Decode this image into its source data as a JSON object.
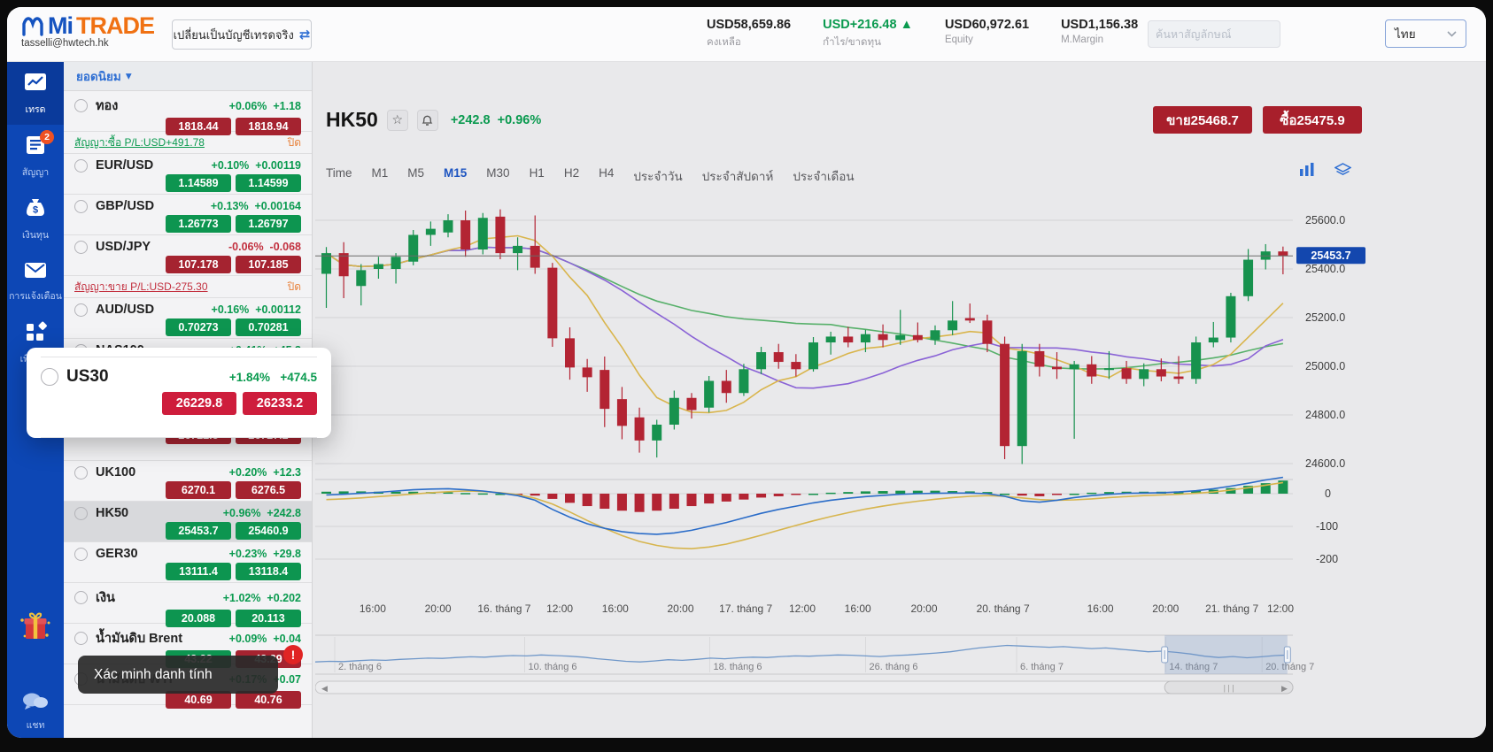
{
  "topbar": {
    "logo_mi": "Mi",
    "logo_trade": "TRADE",
    "email": "tasselli@hwtech.hk",
    "switch_button": "เปลี่ยนเป็นบัญชีเทรดจริง",
    "stats": [
      {
        "value": "USD58,659.86",
        "label": "คงเหลือ",
        "tone": "normal",
        "arrow": ""
      },
      {
        "value": "USD+216.48",
        "label": "กำไร/ขาดทุน",
        "tone": "up",
        "arrow": "▲"
      },
      {
        "value": "USD60,972.61",
        "label": "Equity",
        "tone": "normal",
        "arrow": ""
      },
      {
        "value": "USD1,156.38",
        "label": "M.Margin",
        "tone": "normal",
        "arrow": ""
      }
    ],
    "search_placeholder": "ค้นหาสัญลักษณ์",
    "language": "ไทย"
  },
  "sidebar": {
    "items": [
      {
        "label": "เทรด",
        "icon": "trend-chart",
        "active": true,
        "badge": ""
      },
      {
        "label": "สัญญา",
        "icon": "contract",
        "active": false,
        "badge": "2"
      },
      {
        "label": "เงินทุน",
        "icon": "funds",
        "active": false,
        "badge": ""
      },
      {
        "label": "การแจ้งเตือน",
        "icon": "mail",
        "active": false,
        "badge": ""
      },
      {
        "label": "เพิ่มเติม",
        "icon": "more-grid",
        "active": false,
        "badge": ""
      }
    ],
    "chat_label": "แชท"
  },
  "watchlist": {
    "header": "ยอดนิยม",
    "rows": [
      {
        "type": "instrument",
        "name": "ทอง",
        "pct": "+0.06%",
        "chg": "+1.18",
        "dir": "up",
        "sell": "1818.44",
        "buy": "1818.94",
        "sell_color": "red",
        "buy_color": "red",
        "selected": false
      },
      {
        "type": "position",
        "text": "สัญญา:ซื้อ P/L:USD+491.78",
        "dir": "up",
        "close_label": "ปิด"
      },
      {
        "type": "instrument",
        "name": "EUR/USD",
        "pct": "+0.10%",
        "chg": "+0.00119",
        "dir": "up",
        "sell": "1.14589",
        "buy": "1.14599",
        "sell_color": "green",
        "buy_color": "green",
        "selected": false
      },
      {
        "type": "instrument",
        "name": "GBP/USD",
        "pct": "+0.13%",
        "chg": "+0.00164",
        "dir": "up",
        "sell": "1.26773",
        "buy": "1.26797",
        "sell_color": "green",
        "buy_color": "green",
        "selected": false
      },
      {
        "type": "instrument",
        "name": "USD/JPY",
        "pct": "-0.06%",
        "chg": "-0.068",
        "dir": "down",
        "sell": "107.178",
        "buy": "107.185",
        "sell_color": "red",
        "buy_color": "red",
        "selected": false
      },
      {
        "type": "position",
        "text": "สัญญา:ขาย P/L:USD-275.30",
        "dir": "down",
        "close_label": "ปิด"
      },
      {
        "type": "instrument",
        "name": "AUD/USD",
        "pct": "+0.16%",
        "chg": "+0.00112",
        "dir": "up",
        "sell": "0.70273",
        "buy": "0.70281",
        "sell_color": "green",
        "buy_color": "green",
        "selected": false
      },
      {
        "type": "instrument",
        "name": "NAS100",
        "pct": "+0.41%",
        "chg": "+45.3",
        "dir": "up",
        "sell": "",
        "buy": "",
        "sell_color": "red",
        "buy_color": "red",
        "selected": false
      },
      {
        "type": "instrument",
        "name": "",
        "pct": "",
        "chg": "",
        "dir": "up",
        "sell": "",
        "buy": "",
        "sell_color": "red",
        "buy_color": "red",
        "selected": false
      },
      {
        "type": "instrument",
        "name": "",
        "pct": "",
        "chg": "",
        "dir": "up",
        "sell": "26722.8",
        "buy": "26727.2",
        "sell_color": "red",
        "buy_color": "red",
        "selected": false
      },
      {
        "type": "instrument",
        "name": "UK100",
        "pct": "+0.20%",
        "chg": "+12.3",
        "dir": "up",
        "sell": "6270.1",
        "buy": "6276.5",
        "sell_color": "red",
        "buy_color": "red",
        "selected": false
      },
      {
        "type": "instrument",
        "name": "HK50",
        "pct": "+0.96%",
        "chg": "+242.8",
        "dir": "up",
        "sell": "25453.7",
        "buy": "25460.9",
        "sell_color": "green",
        "buy_color": "green",
        "selected": true
      },
      {
        "type": "instrument",
        "name": "GER30",
        "pct": "+0.23%",
        "chg": "+29.8",
        "dir": "up",
        "sell": "13111.4",
        "buy": "13118.4",
        "sell_color": "green",
        "buy_color": "green",
        "selected": false
      },
      {
        "type": "instrument",
        "name": "เงิน",
        "pct": "+1.02%",
        "chg": "+0.202",
        "dir": "up",
        "sell": "20.088",
        "buy": "20.113",
        "sell_color": "green",
        "buy_color": "green",
        "selected": false
      },
      {
        "type": "instrument",
        "name": "น้ำมันดิบ Brent",
        "pct": "+0.09%",
        "chg": "+0.04",
        "dir": "up",
        "sell": "43.22",
        "buy": "43.29",
        "sell_color": "green",
        "buy_color": "red",
        "selected": false
      },
      {
        "type": "instrument",
        "name": "น้ำมันดิบ WTI",
        "pct": "+0.17%",
        "chg": "+0.07",
        "dir": "up",
        "sell": "40.69",
        "buy": "40.76",
        "sell_color": "red",
        "buy_color": "red",
        "selected": false
      }
    ]
  },
  "popup": {
    "symbol": "US30",
    "pct": "+1.84%",
    "chg": "+474.5",
    "sell": "26229.8",
    "buy": "26233.2"
  },
  "tooltip": {
    "text": "Xác minh danh tính",
    "badge": "!"
  },
  "chart_header": {
    "symbol": "HK50",
    "change": "+242.8",
    "change_pct": "+0.96%",
    "sell_button": "ขาย25468.7",
    "buy_button": "ซื้อ25475.9"
  },
  "timeframes": {
    "items": [
      "Time",
      "M1",
      "M5",
      "M15",
      "M30",
      "H1",
      "H2",
      "H4",
      "ประจำวัน",
      "ประจำสัปดาห์",
      "ประจำเดือน"
    ],
    "active": "M15"
  },
  "chart_data": {
    "type": "candlestick",
    "title": "HK50 M15",
    "y_ticks": [
      25600,
      25400,
      25200,
      25000,
      24800,
      24600
    ],
    "current_price": 25453.7,
    "indicator_ticks": [
      0,
      -100,
      -200
    ],
    "colors": {
      "up": "#17924e",
      "down": "#b32433",
      "ma_fast": "#d9b54c",
      "ma_mid": "#8a63d6",
      "ma_slow": "#57b06a",
      "macd_line": "#2a6cc8",
      "macd_signal": "#d7b54e",
      "price_tag": "#1347ae"
    },
    "ma_periods": {
      "fast": 7,
      "mid": 15,
      "slow": 30
    },
    "candles": [
      [
        25380,
        25490,
        25240,
        25465
      ],
      [
        25465,
        25510,
        25280,
        25370
      ],
      [
        25330,
        25420,
        25250,
        25395
      ],
      [
        25400,
        25450,
        25360,
        25420
      ],
      [
        25400,
        25465,
        25340,
        25450
      ],
      [
        25430,
        25560,
        25415,
        25540
      ],
      [
        25540,
        25595,
        25495,
        25565
      ],
      [
        25550,
        25625,
        25530,
        25600
      ],
      [
        25600,
        25640,
        25450,
        25480
      ],
      [
        25480,
        25630,
        25460,
        25610
      ],
      [
        25615,
        25645,
        25440,
        25465
      ],
      [
        25465,
        25530,
        25395,
        25495
      ],
      [
        25495,
        25620,
        25380,
        25405
      ],
      [
        25405,
        25425,
        25080,
        25115
      ],
      [
        25115,
        25160,
        24945,
        24995
      ],
      [
        24995,
        25030,
        24895,
        24955
      ],
      [
        24985,
        25040,
        24750,
        24825
      ],
      [
        24865,
        24915,
        24700,
        24755
      ],
      [
        24790,
        24830,
        24645,
        24695
      ],
      [
        24695,
        24780,
        24625,
        24760
      ],
      [
        24760,
        24900,
        24740,
        24870
      ],
      [
        24870,
        24890,
        24785,
        24820
      ],
      [
        24830,
        24960,
        24810,
        24940
      ],
      [
        24940,
        24985,
        24850,
        24890
      ],
      [
        24890,
        25010,
        24878,
        24988
      ],
      [
        24988,
        25080,
        24968,
        25058
      ],
      [
        25058,
        25092,
        24990,
        25018
      ],
      [
        25018,
        25050,
        24958,
        24988
      ],
      [
        24988,
        25120,
        24978,
        25098
      ],
      [
        25098,
        25142,
        25048,
        25122
      ],
      [
        25122,
        25162,
        25078,
        25098
      ],
      [
        25098,
        25150,
        25058,
        25132
      ],
      [
        25132,
        25172,
        25078,
        25108
      ],
      [
        25108,
        25232,
        25088,
        25128
      ],
      [
        25128,
        25180,
        25098,
        25108
      ],
      [
        25108,
        25168,
        25088,
        25148
      ],
      [
        25148,
        25268,
        25128,
        25188
      ],
      [
        25198,
        25258,
        25178,
        25188
      ],
      [
        25188,
        25212,
        25058,
        25092
      ],
      [
        25092,
        25122,
        24618,
        24672
      ],
      [
        24672,
        25092,
        24598,
        25062
      ],
      [
        25062,
        25092,
        24958,
        24998
      ],
      [
        24998,
        25058,
        24948,
        24988
      ],
      [
        24988,
        25022,
        24702,
        25008
      ],
      [
        25008,
        25042,
        24928,
        24958
      ],
      [
        24988,
        25062,
        24948,
        24992
      ],
      [
        24992,
        25022,
        24928,
        24948
      ],
      [
        24948,
        25012,
        24918,
        24988
      ],
      [
        24988,
        25032,
        24938,
        24958
      ],
      [
        24958,
        25042,
        24928,
        24948
      ],
      [
        24948,
        25122,
        24928,
        25098
      ],
      [
        25098,
        25182,
        25078,
        25118
      ],
      [
        25118,
        25302,
        25098,
        25288
      ],
      [
        25288,
        25482,
        25268,
        25438
      ],
      [
        25438,
        25502,
        25398,
        25472
      ],
      [
        25472,
        25492,
        25378,
        25454
      ]
    ],
    "macd": {
      "line": [
        -4,
        -2,
        1,
        4,
        8,
        12,
        14,
        15,
        12,
        8,
        2,
        -6,
        -20,
        -48,
        -72,
        -92,
        -106,
        -116,
        -122,
        -124,
        -120,
        -112,
        -100,
        -88,
        -74,
        -60,
        -48,
        -38,
        -28,
        -20,
        -14,
        -9,
        -5,
        -2,
        0,
        1,
        2,
        2,
        0,
        -8,
        -22,
        -26,
        -20,
        -12,
        -6,
        -2,
        1,
        2,
        3,
        5,
        9,
        15,
        23,
        32,
        42,
        50
      ],
      "signal": [
        -18,
        -16,
        -13,
        -9,
        -5,
        -1,
        3,
        6,
        8,
        7,
        3,
        -3,
        -14,
        -32,
        -56,
        -82,
        -106,
        -128,
        -146,
        -158,
        -166,
        -168,
        -163,
        -154,
        -141,
        -127,
        -112,
        -97,
        -83,
        -70,
        -58,
        -47,
        -38,
        -30,
        -23,
        -17,
        -12,
        -8,
        -6,
        -8,
        -13,
        -18,
        -20,
        -19,
        -16,
        -12,
        -9,
        -6,
        -4,
        -2,
        1,
        5,
        11,
        18,
        26,
        34
      ],
      "histogram": [
        6,
        7,
        7,
        6,
        6,
        6,
        5,
        4,
        2,
        1,
        0,
        -2,
        -6,
        -16,
        -28,
        -38,
        -46,
        -52,
        -56,
        -52,
        -46,
        -38,
        -30,
        -24,
        -18,
        -12,
        -8,
        -4,
        0,
        3,
        5,
        7,
        8,
        9,
        9,
        9,
        8,
        7,
        5,
        0,
        -6,
        -8,
        -4,
        0,
        3,
        5,
        6,
        6,
        6,
        7,
        9,
        12,
        17,
        24,
        32,
        40
      ]
    },
    "x_labels": [
      {
        "t": "16:00",
        "x": 0.059
      },
      {
        "t": "20:00",
        "x": 0.126
      },
      {
        "t": "16. tháng 7",
        "x": 0.194
      },
      {
        "t": "12:00",
        "x": 0.251
      },
      {
        "t": "16:00",
        "x": 0.308
      },
      {
        "t": "20:00",
        "x": 0.375
      },
      {
        "t": "17. tháng 7",
        "x": 0.442
      },
      {
        "t": "12:00",
        "x": 0.5
      },
      {
        "t": "16:00",
        "x": 0.557
      },
      {
        "t": "20:00",
        "x": 0.625
      },
      {
        "t": "20. tháng 7",
        "x": 0.706
      },
      {
        "t": "16:00",
        "x": 0.806
      },
      {
        "t": "20:00",
        "x": 0.873
      },
      {
        "t": "21. tháng 7",
        "x": 0.941
      },
      {
        "t": "12:00",
        "x": 0.998
      }
    ],
    "navigator": {
      "values": [
        0.3,
        0.32,
        0.31,
        0.34,
        0.36,
        0.35,
        0.38,
        0.4,
        0.42,
        0.41,
        0.44,
        0.46,
        0.45,
        0.48,
        0.5,
        0.49,
        0.52,
        0.5,
        0.48,
        0.45,
        0.4,
        0.36,
        0.32,
        0.3,
        0.33,
        0.37,
        0.35,
        0.38,
        0.42,
        0.4,
        0.43,
        0.45,
        0.44,
        0.47,
        0.49,
        0.48,
        0.5,
        0.52,
        0.51,
        0.49,
        0.47,
        0.5,
        0.52,
        0.55,
        0.58,
        0.62,
        0.68,
        0.74,
        0.78,
        0.82,
        0.8,
        0.78,
        0.76,
        0.78,
        0.75,
        0.72,
        0.74,
        0.7,
        0.66,
        0.62,
        0.64,
        0.6,
        0.55,
        0.48,
        0.44,
        0.47,
        0.43,
        0.46,
        0.5,
        0.52
      ],
      "labels": [
        {
          "t": "2. tháng 6",
          "x": 0.02
        },
        {
          "t": "10. tháng 6",
          "x": 0.215
        },
        {
          "t": "18. tháng 6",
          "x": 0.405
        },
        {
          "t": "26. tháng 6",
          "x": 0.565
        },
        {
          "t": "6. tháng 7",
          "x": 0.72
        },
        {
          "t": "14. tháng 7",
          "x": 0.873
        },
        {
          "t": "20. tháng 7",
          "x": 0.972
        }
      ],
      "selection": [
        0.872,
        0.998
      ]
    }
  }
}
